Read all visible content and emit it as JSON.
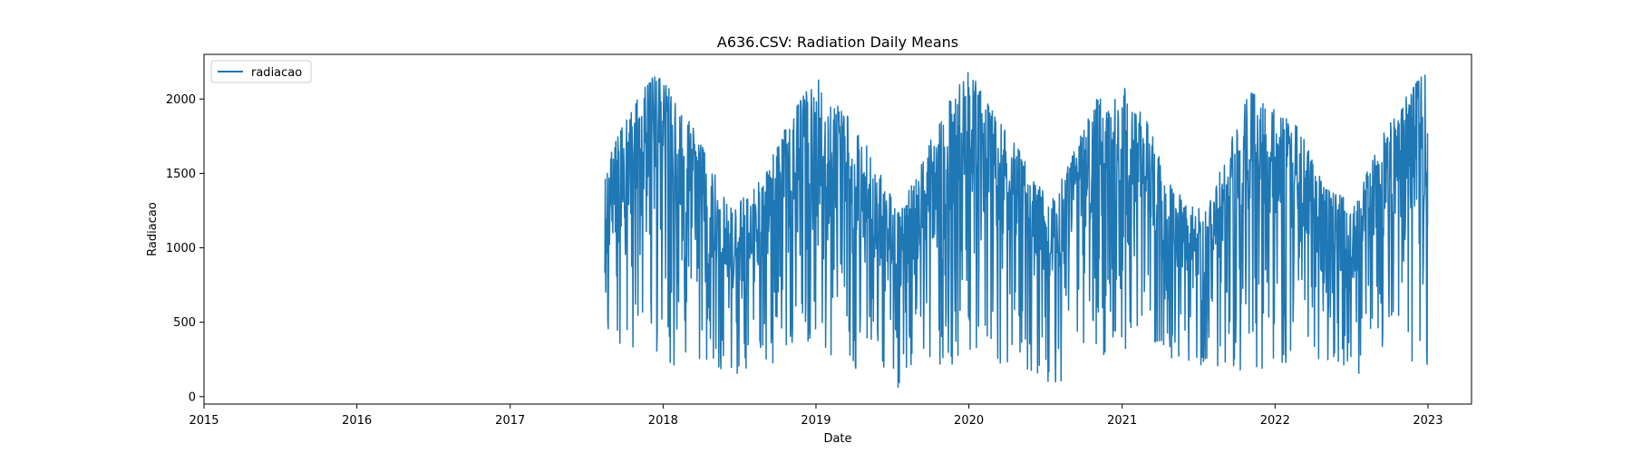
{
  "chart_data": {
    "type": "line",
    "title": "A636.CSV: Radiation Daily Means",
    "xlabel": "Date",
    "ylabel": "Radiacao",
    "xlim": [
      "2015-01-01",
      "2023-04-15"
    ],
    "ylim": [
      -50,
      2300
    ],
    "x_ticks": [
      "2015",
      "2016",
      "2017",
      "2018",
      "2019",
      "2020",
      "2021",
      "2022",
      "2023"
    ],
    "y_ticks": [
      0,
      500,
      1000,
      1500,
      2000
    ],
    "grid": false,
    "legend": {
      "position": "top-left",
      "entries": [
        "radiacao"
      ]
    },
    "series": [
      {
        "name": "radiacao",
        "color": "#1f77b4",
        "x_range": [
          "2017-08-15",
          "2022-12-31"
        ],
        "envelope": {
          "x": [
            "2017-08-15",
            "2017-09-01",
            "2017-10-15",
            "2017-12-01",
            "2018-02-01",
            "2018-04-01",
            "2018-06-15",
            "2018-09-01",
            "2018-11-01",
            "2019-01-01",
            "2019-03-01",
            "2019-05-01",
            "2019-07-15",
            "2019-09-01",
            "2019-11-01",
            "2020-01-01",
            "2020-03-01",
            "2020-05-01",
            "2020-07-15",
            "2020-09-01",
            "2020-11-01",
            "2021-01-01",
            "2021-03-01",
            "2021-05-01",
            "2021-07-15",
            "2021-09-01",
            "2021-11-01",
            "2022-01-01",
            "2022-03-01",
            "2022-05-01",
            "2022-07-15",
            "2022-09-01",
            "2022-11-01",
            "2022-12-31"
          ],
          "max": [
            1450,
            1700,
            1900,
            2200,
            2050,
            1700,
            1250,
            1500,
            1900,
            2150,
            1950,
            1700,
            1250,
            1500,
            1950,
            2200,
            1900,
            1650,
            1300,
            1600,
            2000,
            2100,
            1850,
            1400,
            1250,
            1600,
            2050,
            1950,
            1800,
            1400,
            1300,
            1700,
            2000,
            2200
          ],
          "min": [
            200,
            300,
            320,
            320,
            200,
            180,
            130,
            150,
            200,
            220,
            180,
            160,
            60,
            140,
            180,
            220,
            220,
            180,
            80,
            120,
            200,
            300,
            350,
            250,
            200,
            180,
            150,
            200,
            250,
            250,
            150,
            150,
            200,
            120
          ]
        },
        "last_value": 1150
      }
    ]
  }
}
